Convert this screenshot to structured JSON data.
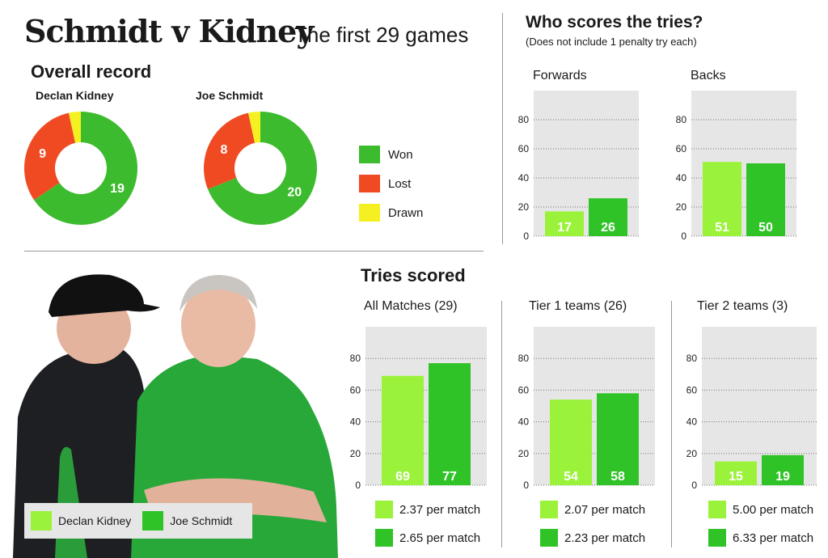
{
  "title": "Schmidt v Kidney",
  "subtitle": "The first 29 games",
  "overall": {
    "heading": "Overall record",
    "legend": [
      "Won",
      "Lost",
      "Drawn"
    ]
  },
  "tries_section": {
    "heading": "Who scores the tries?",
    "note": "(Does not include 1 penalty try each)"
  },
  "scored_section": {
    "heading": "Tries scored"
  },
  "photo_legend": [
    "Declan Kidney",
    "Joe Schmidt"
  ],
  "colors": {
    "won": "#3dbb2e",
    "lost": "#f04a23",
    "drawn": "#f5f021",
    "kidney": "#9bf23a",
    "schmidt": "#2fc327",
    "panel": "#e6e6e6"
  },
  "chart_data": [
    {
      "type": "pie",
      "title": "Declan Kidney",
      "categories": [
        "Won",
        "Lost",
        "Drawn"
      ],
      "values": [
        19,
        9,
        1
      ]
    },
    {
      "type": "pie",
      "title": "Joe Schmidt",
      "categories": [
        "Won",
        "Lost",
        "Drawn"
      ],
      "values": [
        20,
        8,
        1
      ]
    },
    {
      "type": "bar",
      "title": "Forwards",
      "categories": [
        "Declan Kidney",
        "Joe Schmidt"
      ],
      "values": [
        17,
        26
      ],
      "yticks": [
        0,
        20,
        40,
        60,
        80
      ],
      "ylim": [
        0,
        100
      ]
    },
    {
      "type": "bar",
      "title": "Backs",
      "categories": [
        "Declan Kidney",
        "Joe Schmidt"
      ],
      "values": [
        51,
        50
      ],
      "yticks": [
        0,
        20,
        40,
        60,
        80
      ],
      "ylim": [
        0,
        100
      ]
    },
    {
      "type": "bar",
      "title": "All Matches (29)",
      "categories": [
        "Declan Kidney",
        "Joe Schmidt"
      ],
      "values": [
        69,
        77
      ],
      "per_match": [
        "2.37 per match",
        "2.65 per match"
      ],
      "yticks": [
        0,
        20,
        40,
        60,
        80
      ],
      "ylim": [
        0,
        100
      ]
    },
    {
      "type": "bar",
      "title": "Tier 1 teams (26)",
      "categories": [
        "Declan Kidney",
        "Joe Schmidt"
      ],
      "values": [
        54,
        58
      ],
      "per_match": [
        "2.07 per match",
        "2.23 per match"
      ],
      "yticks": [
        0,
        20,
        40,
        60,
        80
      ],
      "ylim": [
        0,
        100
      ]
    },
    {
      "type": "bar",
      "title": "Tier 2 teams (3)",
      "categories": [
        "Declan Kidney",
        "Joe Schmidt"
      ],
      "values": [
        15,
        19
      ],
      "per_match": [
        "5.00 per match",
        "6.33 per match"
      ],
      "yticks": [
        0,
        20,
        40,
        60,
        80
      ],
      "ylim": [
        0,
        100
      ]
    }
  ]
}
